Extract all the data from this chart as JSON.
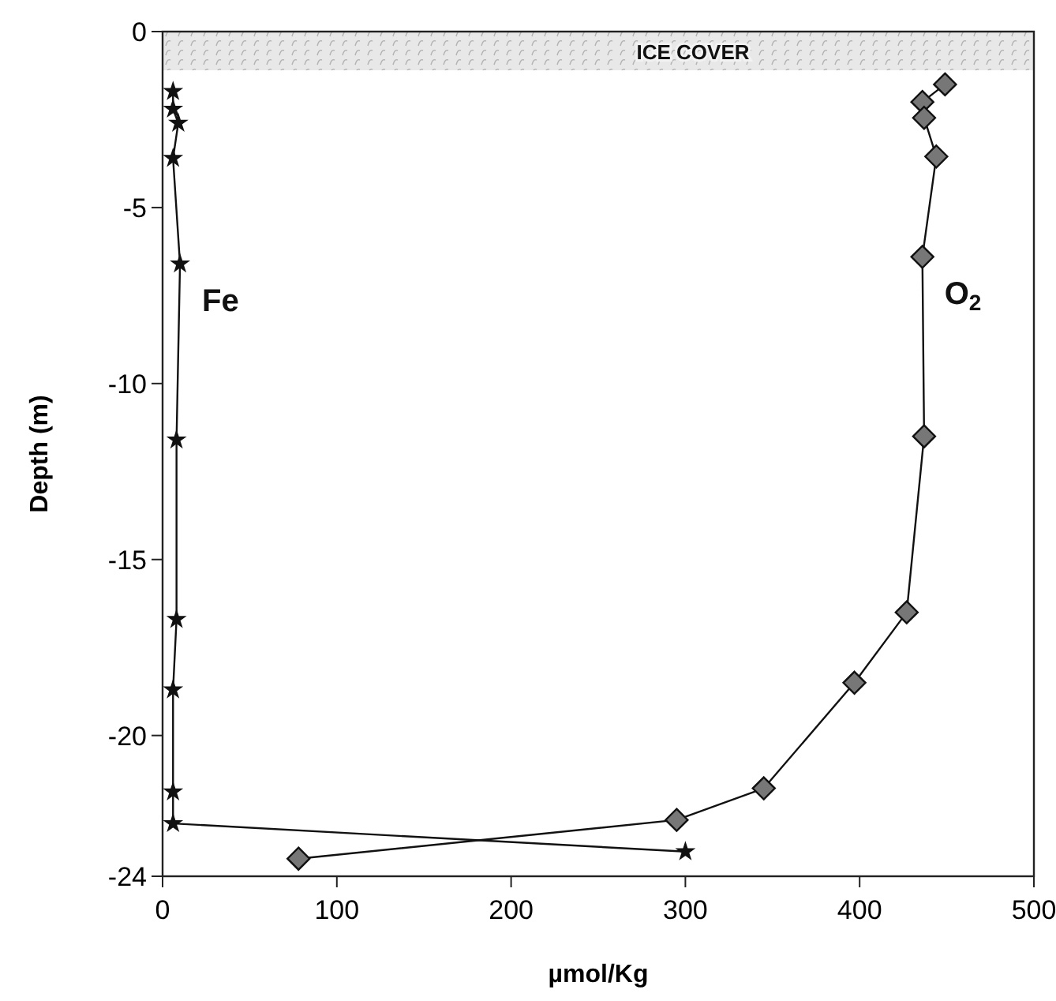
{
  "chart_data": {
    "type": "line",
    "xlabel": "µmol/Kg",
    "ylabel": "Depth (m)",
    "xlim": [
      0,
      500
    ],
    "xticks": [
      0,
      100,
      200,
      300,
      400,
      500
    ],
    "ylim": [
      -24,
      0
    ],
    "yticks": [
      0,
      -5,
      -10,
      -15,
      -20,
      -24
    ],
    "grid": false,
    "line_style": "solid",
    "bands": [
      {
        "axis": "y",
        "from": -1.1,
        "to": 0,
        "label": "ICE COVER",
        "color": "#d8d8d8"
      }
    ],
    "series": [
      {
        "name": "Fe",
        "color": "#111111",
        "marker": "star",
        "x": [
          6,
          6,
          9,
          6,
          10,
          8,
          8,
          6,
          6,
          6,
          300
        ],
        "values": [
          -1.7,
          -2.2,
          -2.6,
          -3.6,
          -6.6,
          -11.6,
          -16.7,
          -18.7,
          -21.6,
          -22.5,
          -23.3
        ]
      },
      {
        "name": "O$_{2}$",
        "color": "#777777",
        "marker": "diamond",
        "x": [
          449,
          436,
          437,
          444,
          436,
          437,
          427,
          397,
          345,
          295,
          78
        ],
        "values": [
          -1.5,
          -2.0,
          -2.45,
          -3.55,
          -6.4,
          -11.5,
          -16.5,
          -18.5,
          -21.5,
          -22.4,
          -23.5
        ]
      }
    ]
  }
}
